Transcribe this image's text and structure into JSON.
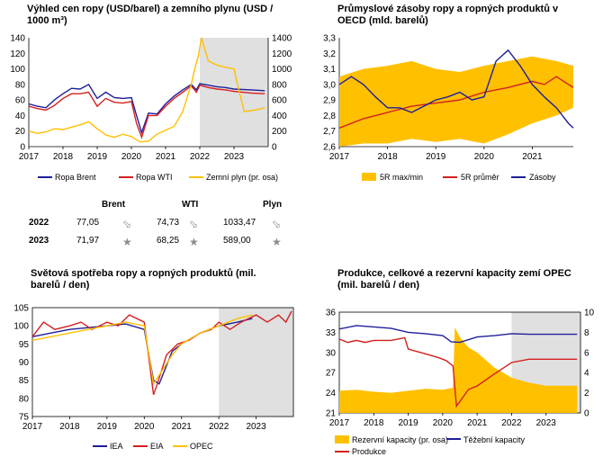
{
  "panels": {
    "tl": {
      "title_line1": "Výhled cen ropy (USD/barel) a zemního plynu (USD /",
      "title_line2": "1000 m³)"
    },
    "tr": {
      "title_line1": "Průmyslové zásoby ropy a ropných produktů v",
      "title_line2": "OECD (mld. barelů)"
    },
    "bl": {
      "title_line1": "Světová spotřeba ropy a ropných produktů (mil.",
      "title_line2": "barelů / den)"
    },
    "br": {
      "title_line1": "Produkce, celkové a rezervní kapacity zemí OPEC",
      "title_line2": "(mil. barelů / den)"
    }
  },
  "table": {
    "headers": [
      "Brent",
      "WTI",
      "Plyn"
    ],
    "rows": [
      {
        "year": "2022",
        "brent": "77,05",
        "wti": "74,73",
        "gas": "1033,47",
        "icons": [
          "arrow-down-right-icon",
          "arrow-down-right-icon",
          "arrow-down-right-icon"
        ]
      },
      {
        "year": "2023",
        "brent": "71,97",
        "wti": "68,25",
        "gas": "589,00",
        "icons": [
          "star-icon",
          "star-icon",
          "star-icon"
        ]
      }
    ]
  },
  "colors": {
    "brent": "#1f1f9a",
    "wti": "#d42020",
    "gas": "#ffc000",
    "shade": "#e0e0e0",
    "band": "#ffc000"
  },
  "chart_data": [
    {
      "type": "line",
      "x_ticks": [
        "2017",
        "2018",
        "2019",
        "2020",
        "2021",
        "2022",
        "2023"
      ],
      "y_ticks_left": [
        "0",
        "20",
        "40",
        "60",
        "80",
        "100",
        "120",
        "140"
      ],
      "y_ticks_right": [
        "0",
        "200",
        "400",
        "600",
        "800",
        "1000",
        "1200",
        "1400"
      ],
      "ylim": [
        0,
        140
      ],
      "ylim_right": [
        0,
        1400
      ],
      "forecast_from": 2022,
      "series": [
        {
          "name": "Ropa Brent",
          "axis": "left",
          "x": [
            2017.0,
            2017.25,
            2017.5,
            2017.75,
            2018.0,
            2018.25,
            2018.5,
            2018.75,
            2019.0,
            2019.25,
            2019.5,
            2019.75,
            2020.0,
            2020.15,
            2020.3,
            2020.5,
            2020.75,
            2021.0,
            2021.25,
            2021.5,
            2021.75,
            2021.9,
            2022.0,
            2022.25,
            2022.5,
            2022.75,
            2023.0,
            2023.5,
            2023.9
          ],
          "y": [
            55,
            52,
            50,
            60,
            68,
            75,
            74,
            80,
            62,
            70,
            63,
            62,
            63,
            40,
            18,
            43,
            42,
            55,
            65,
            73,
            80,
            73,
            81,
            79,
            77,
            76,
            74,
            73,
            72
          ]
        },
        {
          "name": "Ropa WTI",
          "axis": "left",
          "x": [
            2017.0,
            2017.25,
            2017.5,
            2017.75,
            2018.0,
            2018.25,
            2018.5,
            2018.75,
            2019.0,
            2019.25,
            2019.5,
            2019.75,
            2020.0,
            2020.15,
            2020.3,
            2020.5,
            2020.75,
            2021.0,
            2021.25,
            2021.5,
            2021.75,
            2021.9,
            2022.0,
            2022.25,
            2022.5,
            2022.75,
            2023.0,
            2023.5,
            2023.9
          ],
          "y": [
            52,
            49,
            47,
            53,
            62,
            68,
            68,
            70,
            52,
            62,
            57,
            56,
            58,
            30,
            12,
            40,
            40,
            52,
            62,
            70,
            78,
            70,
            79,
            76,
            74,
            73,
            71,
            69,
            68
          ]
        },
        {
          "name": "Zemní plyn (pr. osa)",
          "axis": "right",
          "x": [
            2017.0,
            2017.25,
            2017.5,
            2017.75,
            2018.0,
            2018.25,
            2018.5,
            2018.75,
            2019.0,
            2019.25,
            2019.5,
            2019.75,
            2020.0,
            2020.25,
            2020.5,
            2020.75,
            2021.0,
            2021.25,
            2021.5,
            2021.75,
            2021.85,
            2021.95,
            2022.05,
            2022.25,
            2022.5,
            2022.75,
            2023.0,
            2023.1,
            2023.3,
            2023.6,
            2023.9
          ],
          "y": [
            200,
            170,
            190,
            230,
            220,
            250,
            280,
            320,
            230,
            150,
            120,
            160,
            130,
            60,
            70,
            160,
            210,
            260,
            450,
            800,
            1000,
            1150,
            1400,
            1100,
            1050,
            1020,
            1000,
            800,
            450,
            470,
            500
          ]
        }
      ]
    },
    {
      "type": "area",
      "x_ticks": [
        "2017",
        "2018",
        "2019",
        "2020",
        "2021"
      ],
      "y_ticks": [
        "2,6",
        "2,7",
        "2,8",
        "2,9",
        "3,0",
        "3,1",
        "3,2",
        "3,3"
      ],
      "ylim": [
        2.6,
        3.3
      ],
      "series": [
        {
          "name": "5R max/min",
          "x": [
            2017.0,
            2017.5,
            2018.0,
            2018.5,
            2019.0,
            2019.5,
            2020.0,
            2020.5,
            2021.0,
            2021.5,
            2021.85
          ],
          "upper": [
            3.05,
            3.1,
            3.12,
            3.15,
            3.1,
            3.08,
            3.12,
            3.15,
            3.18,
            3.15,
            3.12
          ],
          "lower": [
            2.6,
            2.62,
            2.62,
            2.65,
            2.63,
            2.65,
            2.62,
            2.68,
            2.75,
            2.8,
            2.85
          ]
        },
        {
          "name": "5R průměr",
          "x": [
            2017.0,
            2017.5,
            2018.0,
            2018.5,
            2019.0,
            2019.5,
            2020.0,
            2020.5,
            2021.0,
            2021.25,
            2021.5,
            2021.85
          ],
          "y": [
            2.72,
            2.78,
            2.82,
            2.86,
            2.88,
            2.9,
            2.95,
            2.98,
            3.02,
            3.0,
            3.05,
            2.98
          ]
        },
        {
          "name": "Zásoby",
          "x": [
            2017.0,
            2017.25,
            2017.5,
            2017.75,
            2018.0,
            2018.25,
            2018.5,
            2018.75,
            2019.0,
            2019.25,
            2019.5,
            2019.75,
            2020.0,
            2020.25,
            2020.5,
            2020.75,
            2021.0,
            2021.25,
            2021.5,
            2021.75,
            2021.85
          ],
          "y": [
            3.0,
            3.05,
            3.0,
            2.92,
            2.85,
            2.85,
            2.82,
            2.86,
            2.9,
            2.92,
            2.95,
            2.9,
            2.92,
            3.15,
            3.22,
            3.12,
            3.0,
            2.92,
            2.85,
            2.75,
            2.72
          ]
        }
      ]
    },
    {
      "type": "line",
      "x_ticks": [
        "2017",
        "2018",
        "2019",
        "2020",
        "2021",
        "2022",
        "2023"
      ],
      "y_ticks": [
        "75",
        "80",
        "85",
        "90",
        "95",
        "100",
        "105"
      ],
      "ylim": [
        75,
        105
      ],
      "forecast_from": 2022,
      "series": [
        {
          "name": "IEA",
          "x": [
            2017.0,
            2017.5,
            2018.0,
            2018.5,
            2019.0,
            2019.5,
            2020.0,
            2020.25,
            2020.4,
            2020.75,
            2021.0,
            2021.5,
            2022.0,
            2022.5,
            2022.9
          ],
          "y": [
            97,
            98,
            99,
            99.5,
            100,
            100.5,
            99,
            85,
            84,
            93,
            95,
            98,
            100,
            101,
            102
          ]
        },
        {
          "name": "EIA",
          "x": [
            2017.0,
            2017.3,
            2017.6,
            2018.0,
            2018.3,
            2018.6,
            2019.0,
            2019.3,
            2019.6,
            2020.0,
            2020.25,
            2020.35,
            2020.6,
            2020.9,
            2021.2,
            2021.5,
            2021.8,
            2022.0,
            2022.3,
            2022.6,
            2023.0,
            2023.3,
            2023.6,
            2023.8,
            2023.95
          ],
          "y": [
            97,
            101,
            99,
            100,
            101,
            99,
            101,
            100,
            103,
            101,
            81,
            84,
            92,
            95,
            96,
            98,
            99,
            101,
            99,
            101,
            103,
            101,
            103,
            101,
            104
          ]
        },
        {
          "name": "OPEC",
          "x": [
            2017.0,
            2017.5,
            2018.0,
            2018.5,
            2019.0,
            2019.5,
            2020.0,
            2020.25,
            2020.5,
            2020.75,
            2021.0,
            2021.5,
            2022.0,
            2022.5,
            2022.9
          ],
          "y": [
            96,
            97,
            98,
            99,
            100,
            101,
            100,
            84,
            88,
            92,
            95,
            98,
            100,
            102,
            103
          ]
        }
      ]
    },
    {
      "type": "area",
      "x_ticks": [
        "2017",
        "2018",
        "2019",
        "2020",
        "2021",
        "2022",
        "2023"
      ],
      "y_ticks_left": [
        "21",
        "24",
        "27",
        "30",
        "33",
        "36"
      ],
      "y_ticks_right": [
        "0",
        "2",
        "4",
        "6",
        "8",
        "10"
      ],
      "ylim": [
        21,
        36
      ],
      "ylim_right": [
        0,
        10
      ],
      "forecast_from": 2022,
      "series": [
        {
          "name": "Rezervní kapacity (pr. osa)",
          "axis": "right",
          "x": [
            2017.0,
            2017.5,
            2018.0,
            2018.5,
            2019.0,
            2019.5,
            2020.0,
            2020.3,
            2020.35,
            2020.5,
            2020.75,
            2021.0,
            2021.5,
            2022.0,
            2022.5,
            2023.0,
            2023.9
          ],
          "y": [
            2.2,
            2.3,
            2.1,
            2.0,
            2.2,
            2.4,
            2.3,
            2.5,
            8.5,
            7.5,
            6.5,
            6.0,
            4.5,
            3.5,
            3.0,
            2.7,
            2.7
          ]
        },
        {
          "name": "Těžební kapacity",
          "axis": "left",
          "x": [
            2017.0,
            2017.5,
            2018.0,
            2018.5,
            2019.0,
            2019.5,
            2020.0,
            2020.25,
            2020.5,
            2021.0,
            2021.5,
            2022.0,
            2022.5,
            2023.0,
            2023.9
          ],
          "y": [
            33.5,
            34,
            33.8,
            33.6,
            33,
            32.8,
            32.5,
            31.6,
            31.5,
            32.3,
            32.5,
            32.8,
            32.7,
            32.7,
            32.7
          ]
        },
        {
          "name": "Produkce",
          "axis": "left",
          "x": [
            2017.0,
            2017.25,
            2017.5,
            2017.75,
            2018.0,
            2018.5,
            2018.9,
            2019.0,
            2019.5,
            2019.9,
            2020.1,
            2020.3,
            2020.4,
            2020.75,
            2021.0,
            2021.5,
            2022.0,
            2022.5,
            2023.0,
            2023.9
          ],
          "y": [
            32,
            31.5,
            31.8,
            31.5,
            31.8,
            31.8,
            32.2,
            30.5,
            29.8,
            29.2,
            28.8,
            28,
            22,
            24.5,
            25,
            26.8,
            28.5,
            29,
            29,
            29
          ]
        }
      ]
    }
  ],
  "legends": {
    "tl": [
      "Ropa Brent",
      "Ropa WTI",
      "Zemní plyn (pr. osa)"
    ],
    "tr": [
      "5R max/min",
      "5R průměr",
      "Zásoby"
    ],
    "bl": [
      "IEA",
      "EIA",
      "OPEC"
    ],
    "br": [
      "Rezervní kapacity (pr. osa)",
      "Těžební kapacity",
      "Produkce"
    ]
  }
}
